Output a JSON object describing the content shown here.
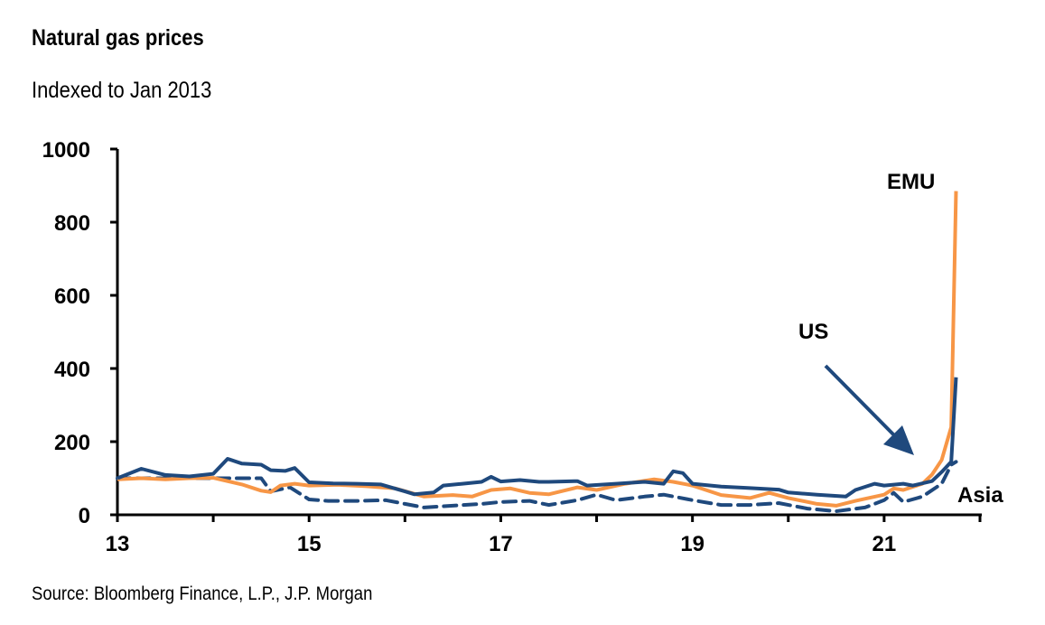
{
  "chart_data": {
    "type": "line",
    "title": "Natural gas prices",
    "subtitle": "Indexed to Jan 2013",
    "source": "Source: Bloomberg Finance, L.P., J.P. Morgan",
    "xlabel": "",
    "ylabel": "",
    "xlim": [
      13,
      22
    ],
    "ylim": [
      0,
      1000
    ],
    "xticks": [
      13,
      14,
      15,
      16,
      17,
      18,
      19,
      20,
      21,
      22
    ],
    "xtick_labels": [
      "13",
      "15",
      "17",
      "19",
      "21"
    ],
    "xtick_label_values": [
      13,
      15,
      17,
      19,
      21
    ],
    "yticks": [
      0,
      200,
      400,
      600,
      800,
      1000
    ],
    "ytick_labels": [
      "0",
      "200",
      "400",
      "600",
      "800",
      "1000"
    ],
    "grid": false,
    "legend": "none",
    "series": [
      {
        "name": "US",
        "color": "#1f497d",
        "style": "solid",
        "x": [
          13.0,
          13.25,
          13.5,
          13.75,
          14.0,
          14.15,
          14.3,
          14.5,
          14.6,
          14.75,
          14.85,
          15.0,
          15.25,
          15.5,
          15.75,
          16.0,
          16.1,
          16.3,
          16.4,
          16.6,
          16.8,
          16.9,
          17.0,
          17.2,
          17.4,
          17.5,
          17.8,
          17.9,
          18.2,
          18.5,
          18.7,
          18.8,
          18.9,
          19.0,
          19.3,
          19.6,
          19.9,
          20.0,
          20.3,
          20.6,
          20.7,
          20.9,
          21.0,
          21.2,
          21.3,
          21.5,
          21.6,
          21.7,
          21.75
        ],
        "y": [
          100,
          126,
          109,
          105,
          112,
          153,
          140,
          137,
          122,
          120,
          128,
          89,
          86,
          85,
          83,
          64,
          56,
          61,
          80,
          85,
          90,
          104,
          91,
          95,
          90,
          90,
          92,
          80,
          85,
          90,
          85,
          119,
          114,
          85,
          77,
          73,
          69,
          61,
          55,
          50,
          68,
          85,
          80,
          85,
          80,
          92,
          117,
          145,
          376
        ]
      },
      {
        "name": "EMU",
        "color": "#f79646",
        "style": "solid",
        "x": [
          13.0,
          13.25,
          13.5,
          13.75,
          14.0,
          14.3,
          14.5,
          14.6,
          14.7,
          14.85,
          15.0,
          15.3,
          15.6,
          15.9,
          16.2,
          16.5,
          16.7,
          16.9,
          17.1,
          17.3,
          17.5,
          17.8,
          18.0,
          18.3,
          18.6,
          18.8,
          19.0,
          19.3,
          19.6,
          19.8,
          20.0,
          20.3,
          20.5,
          20.7,
          21.0,
          21.1,
          21.2,
          21.4,
          21.5,
          21.6,
          21.7,
          21.75
        ],
        "y": [
          97,
          100,
          97,
          100,
          101,
          83,
          66,
          62,
          80,
          85,
          80,
          82,
          78,
          72,
          50,
          54,
          50,
          68,
          72,
          60,
          56,
          75,
          68,
          85,
          97,
          90,
          80,
          54,
          46,
          60,
          46,
          30,
          25,
          38,
          55,
          72,
          68,
          85,
          110,
          150,
          240,
          885
        ]
      },
      {
        "name": "Asia",
        "color": "#1f497d",
        "style": "dashed",
        "x": [
          13.0,
          13.5,
          14.0,
          14.5,
          14.6,
          14.8,
          15.0,
          15.2,
          15.5,
          15.8,
          16.0,
          16.2,
          16.5,
          16.8,
          17.0,
          17.3,
          17.5,
          17.8,
          18.0,
          18.2,
          18.5,
          18.7,
          19.0,
          19.3,
          19.6,
          19.9,
          20.2,
          20.5,
          20.8,
          21.0,
          21.1,
          21.2,
          21.4,
          21.6,
          21.7,
          21.75
        ],
        "y": [
          100,
          100,
          100,
          100,
          64,
          75,
          42,
          38,
          38,
          40,
          30,
          20,
          25,
          30,
          35,
          38,
          27,
          40,
          55,
          40,
          50,
          55,
          40,
          27,
          27,
          32,
          17,
          10,
          20,
          40,
          60,
          35,
          50,
          85,
          137,
          145
        ]
      }
    ],
    "annotations": [
      {
        "text": "EMU",
        "series": "EMU"
      },
      {
        "text": "US",
        "series": "US",
        "arrow": true
      },
      {
        "text": "Asia",
        "series": "Asia"
      }
    ]
  }
}
